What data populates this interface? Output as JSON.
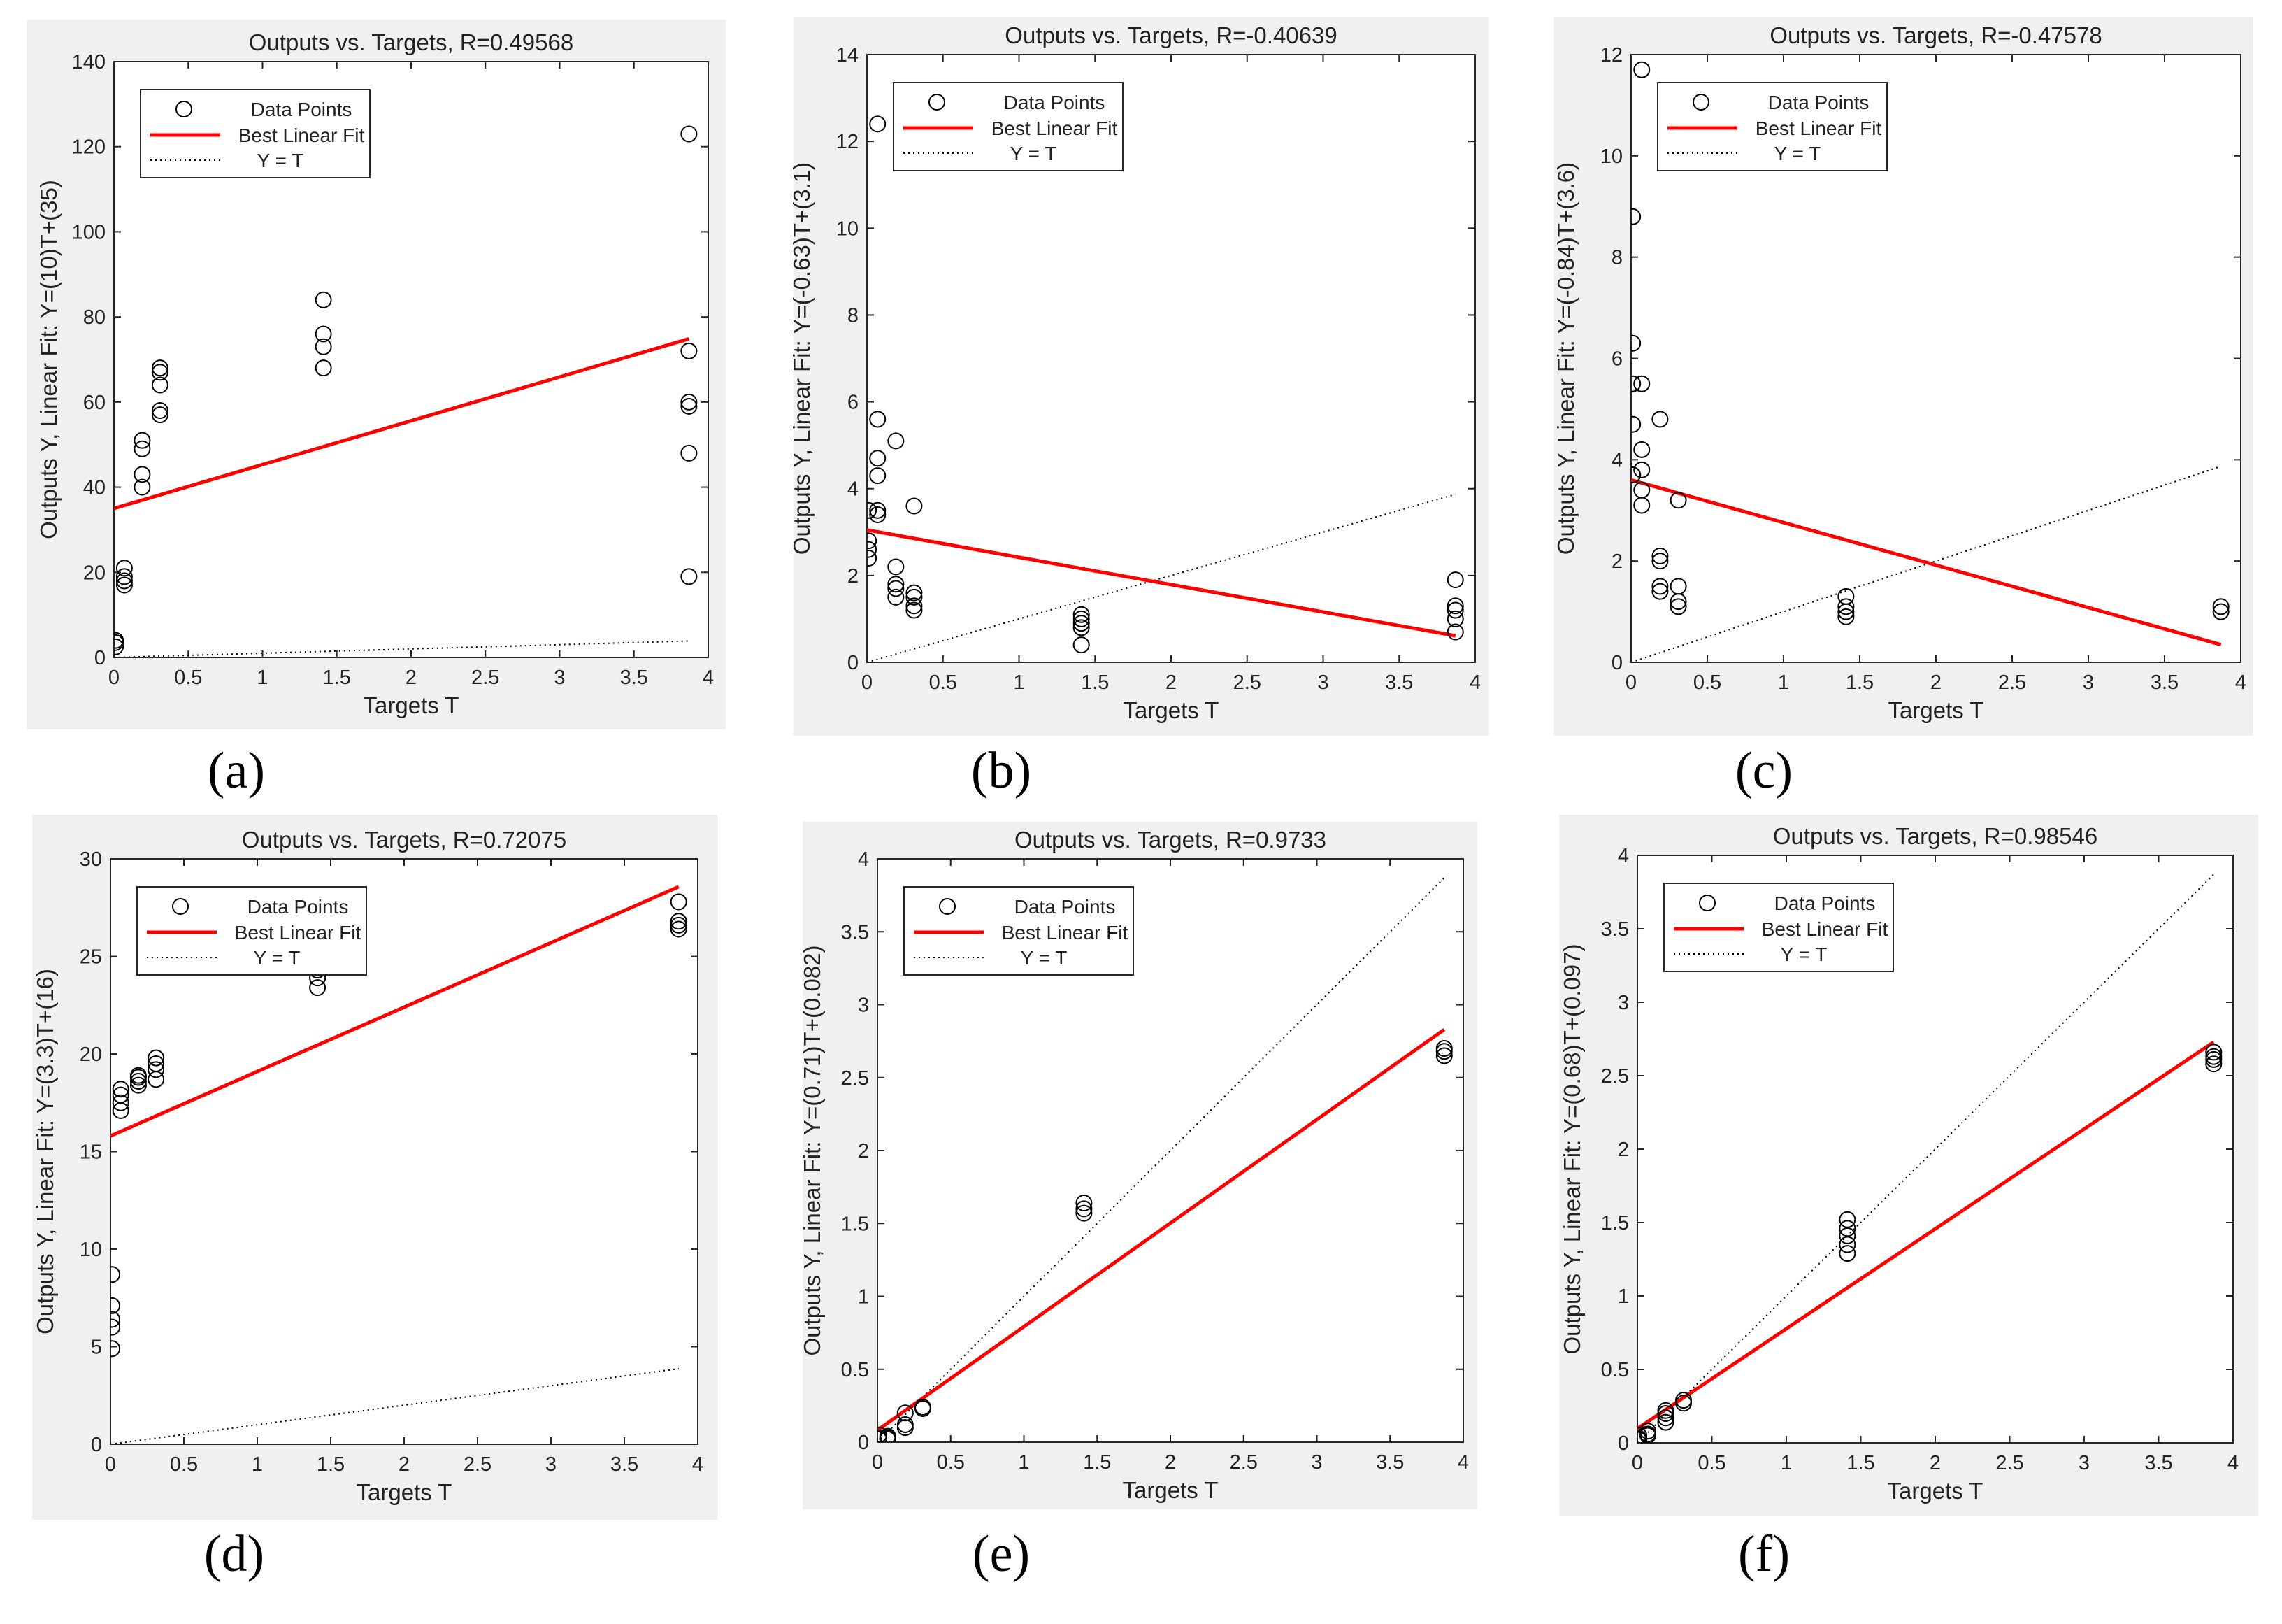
{
  "figure": {
    "captions": [
      "(a)",
      "(b)",
      "(c)",
      "(d)",
      "(e)",
      "(f)"
    ]
  },
  "legend": {
    "data_points": "Data Points",
    "best_fit": "Best Linear Fit",
    "identity": "Y = T"
  },
  "colors": {
    "fit": "#ff0000",
    "points": "#000000",
    "panel_bg": "#f0f0f0",
    "axes_bg": "#ffffff"
  },
  "chart_data": [
    {
      "id": "a",
      "type": "scatter",
      "title": "Outputs vs. Targets, R=0.49568",
      "xlabel": "Targets T",
      "ylabel": "Outputs Y,  Linear Fit: Y=(10)T+(35)",
      "xlim": [
        0,
        4
      ],
      "ylim": [
        0,
        140
      ],
      "xticks": [
        "0",
        "0.5",
        "1",
        "1.5",
        "2",
        "2.5",
        "3",
        "3.5",
        "4"
      ],
      "yticks": [
        "0",
        "20",
        "40",
        "60",
        "80",
        "100",
        "120",
        "140"
      ],
      "xtick_values": [
        0,
        0.5,
        1,
        1.5,
        2,
        2.5,
        3,
        3.5,
        4
      ],
      "ytick_values": [
        0,
        20,
        40,
        60,
        80,
        100,
        120,
        140
      ],
      "fit": {
        "slope": 10.3,
        "intercept": 35,
        "x_range": [
          0,
          3.87
        ]
      },
      "identity_range": [
        0,
        3.87
      ],
      "points": [
        [
          0.01,
          2.5
        ],
        [
          0.01,
          3.5
        ],
        [
          0.01,
          4
        ],
        [
          0.07,
          17
        ],
        [
          0.07,
          18
        ],
        [
          0.07,
          19
        ],
        [
          0.07,
          21
        ],
        [
          0.19,
          40
        ],
        [
          0.19,
          43
        ],
        [
          0.19,
          49
        ],
        [
          0.19,
          51
        ],
        [
          0.31,
          57
        ],
        [
          0.31,
          58
        ],
        [
          0.31,
          64
        ],
        [
          0.31,
          67
        ],
        [
          0.31,
          68
        ],
        [
          1.41,
          68
        ],
        [
          1.41,
          73
        ],
        [
          1.41,
          76
        ],
        [
          1.41,
          84
        ],
        [
          3.87,
          19
        ],
        [
          3.87,
          48
        ],
        [
          3.87,
          59
        ],
        [
          3.87,
          60
        ],
        [
          3.87,
          72
        ],
        [
          3.87,
          123
        ]
      ]
    },
    {
      "id": "b",
      "type": "scatter",
      "title": "Outputs vs. Targets, R=-0.40639",
      "xlabel": "Targets T",
      "ylabel": "Outputs Y,  Linear Fit: Y=(-0.63)T+(3.1)",
      "xlim": [
        0,
        4
      ],
      "ylim": [
        0,
        14
      ],
      "xticks": [
        "0",
        "0.5",
        "1",
        "1.5",
        "2",
        "2.5",
        "3",
        "3.5",
        "4"
      ],
      "yticks": [
        "0",
        "2",
        "4",
        "6",
        "8",
        "10",
        "12",
        "14"
      ],
      "xtick_values": [
        0,
        0.5,
        1,
        1.5,
        2,
        2.5,
        3,
        3.5,
        4
      ],
      "ytick_values": [
        0,
        2,
        4,
        6,
        8,
        10,
        12,
        14
      ],
      "fit": {
        "slope": -0.63,
        "intercept": 3.05,
        "x_range": [
          0,
          3.87
        ]
      },
      "identity_range": [
        0,
        3.87
      ],
      "points": [
        [
          0.01,
          2.4
        ],
        [
          0.01,
          2.6
        ],
        [
          0.01,
          2.8
        ],
        [
          0.01,
          3.5
        ],
        [
          0.07,
          3.4
        ],
        [
          0.07,
          3.5
        ],
        [
          0.07,
          4.3
        ],
        [
          0.07,
          4.7
        ],
        [
          0.07,
          5.6
        ],
        [
          0.07,
          12.4
        ],
        [
          0.19,
          1.5
        ],
        [
          0.19,
          1.7
        ],
        [
          0.19,
          1.8
        ],
        [
          0.19,
          2.2
        ],
        [
          0.19,
          5.1
        ],
        [
          0.31,
          1.2
        ],
        [
          0.31,
          1.3
        ],
        [
          0.31,
          1.5
        ],
        [
          0.31,
          1.6
        ],
        [
          0.31,
          3.6
        ],
        [
          1.41,
          0.4
        ],
        [
          1.41,
          0.8
        ],
        [
          1.41,
          0.9
        ],
        [
          1.41,
          1.0
        ],
        [
          1.41,
          1.1
        ],
        [
          3.87,
          0.7
        ],
        [
          3.87,
          1.0
        ],
        [
          3.87,
          1.2
        ],
        [
          3.87,
          1.3
        ],
        [
          3.87,
          1.9
        ]
      ]
    },
    {
      "id": "c",
      "type": "scatter",
      "title": "Outputs vs. Targets, R=-0.47578",
      "xlabel": "Targets T",
      "ylabel": "Outputs Y,  Linear Fit: Y=(-0.84)T+(3.6)",
      "xlim": [
        0,
        4
      ],
      "ylim": [
        0,
        12
      ],
      "xticks": [
        "0",
        "0.5",
        "1",
        "1.5",
        "2",
        "2.5",
        "3",
        "3.5",
        "4"
      ],
      "yticks": [
        "0",
        "2",
        "4",
        "6",
        "8",
        "10",
        "12"
      ],
      "xtick_values": [
        0,
        0.5,
        1,
        1.5,
        2,
        2.5,
        3,
        3.5,
        4
      ],
      "ytick_values": [
        0,
        2,
        4,
        6,
        8,
        10,
        12
      ],
      "fit": {
        "slope": -0.84,
        "intercept": 3.6,
        "x_range": [
          0,
          3.87
        ]
      },
      "identity_range": [
        0,
        3.87
      ],
      "points": [
        [
          0.01,
          3.7
        ],
        [
          0.01,
          3.7
        ],
        [
          0.01,
          4.7
        ],
        [
          0.01,
          5.5
        ],
        [
          0.01,
          6.3
        ],
        [
          0.01,
          8.8
        ],
        [
          0.07,
          3.1
        ],
        [
          0.07,
          3.4
        ],
        [
          0.07,
          3.8
        ],
        [
          0.07,
          4.2
        ],
        [
          0.07,
          5.5
        ],
        [
          0.07,
          11.7
        ],
        [
          0.19,
          1.4
        ],
        [
          0.19,
          1.5
        ],
        [
          0.19,
          2.0
        ],
        [
          0.19,
          2.1
        ],
        [
          0.19,
          4.8
        ],
        [
          0.31,
          1.1
        ],
        [
          0.31,
          1.2
        ],
        [
          0.31,
          1.5
        ],
        [
          0.31,
          3.2
        ],
        [
          1.41,
          0.9
        ],
        [
          1.41,
          1.0
        ],
        [
          1.41,
          1.1
        ],
        [
          1.41,
          1.3
        ],
        [
          3.87,
          1.0
        ],
        [
          3.87,
          1.1
        ]
      ]
    },
    {
      "id": "d",
      "type": "scatter",
      "title": "Outputs vs. Targets, R=0.72075",
      "xlabel": "Targets T",
      "ylabel": "Outputs Y,  Linear Fit: Y=(3.3)T+(16)",
      "xlim": [
        0,
        4
      ],
      "ylim": [
        0,
        30
      ],
      "xticks": [
        "0",
        "0.5",
        "1",
        "1.5",
        "2",
        "2.5",
        "3",
        "3.5",
        "4"
      ],
      "yticks": [
        "0",
        "5",
        "10",
        "15",
        "20",
        "25",
        "30"
      ],
      "xtick_values": [
        0,
        0.5,
        1,
        1.5,
        2,
        2.5,
        3,
        3.5,
        4
      ],
      "ytick_values": [
        0,
        5,
        10,
        15,
        20,
        25,
        30
      ],
      "fit": {
        "slope": 3.3,
        "intercept": 15.8,
        "x_range": [
          0,
          3.87
        ]
      },
      "identity_range": [
        0,
        3.87
      ],
      "points": [
        [
          0.01,
          4.9
        ],
        [
          0.01,
          6.0
        ],
        [
          0.01,
          6.4
        ],
        [
          0.01,
          7.1
        ],
        [
          0.01,
          8.7
        ],
        [
          0.07,
          17.1
        ],
        [
          0.07,
          17.5
        ],
        [
          0.07,
          17.9
        ],
        [
          0.07,
          18.2
        ],
        [
          0.19,
          18.4
        ],
        [
          0.19,
          18.6
        ],
        [
          0.19,
          18.8
        ],
        [
          0.19,
          18.9
        ],
        [
          0.31,
          18.7
        ],
        [
          0.31,
          19.2
        ],
        [
          0.31,
          19.5
        ],
        [
          0.31,
          19.8
        ],
        [
          1.41,
          23.4
        ],
        [
          1.41,
          23.9
        ],
        [
          1.41,
          24.3
        ],
        [
          3.87,
          26.4
        ],
        [
          3.87,
          26.6
        ],
        [
          3.87,
          26.8
        ],
        [
          3.87,
          27.8
        ]
      ]
    },
    {
      "id": "e",
      "type": "scatter",
      "title": "Outputs vs. Targets, R=0.9733",
      "xlabel": "Targets T",
      "ylabel": "Outputs Y,  Linear Fit: Y=(0.71)T+(0.082)",
      "xlim": [
        0,
        4
      ],
      "ylim": [
        0,
        4
      ],
      "xticks": [
        "0",
        "0.5",
        "1",
        "1.5",
        "2",
        "2.5",
        "3",
        "3.5",
        "4"
      ],
      "yticks": [
        "0",
        "0.5",
        "1",
        "1.5",
        "2",
        "2.5",
        "3",
        "3.5",
        "4"
      ],
      "xtick_values": [
        0,
        0.5,
        1,
        1.5,
        2,
        2.5,
        3,
        3.5,
        4
      ],
      "ytick_values": [
        0,
        0.5,
        1,
        1.5,
        2,
        2.5,
        3,
        3.5,
        4
      ],
      "fit": {
        "slope": 0.71,
        "intercept": 0.082,
        "x_range": [
          0,
          3.87
        ]
      },
      "identity_range": [
        0,
        3.87
      ],
      "points": [
        [
          0.01,
          0.02
        ],
        [
          0.01,
          0.03
        ],
        [
          0.01,
          0.05
        ],
        [
          0.07,
          0.02
        ],
        [
          0.07,
          0.03
        ],
        [
          0.07,
          0.04
        ],
        [
          0.19,
          0.1
        ],
        [
          0.19,
          0.12
        ],
        [
          0.19,
          0.2
        ],
        [
          0.31,
          0.23
        ],
        [
          0.31,
          0.24
        ],
        [
          1.41,
          1.57
        ],
        [
          1.41,
          1.6
        ],
        [
          1.41,
          1.64
        ],
        [
          3.87,
          2.65
        ],
        [
          3.87,
          2.68
        ],
        [
          3.87,
          2.7
        ]
      ]
    },
    {
      "id": "f",
      "type": "scatter",
      "title": "Outputs vs. Targets, R=0.98546",
      "xlabel": "Targets T",
      "ylabel": "Outputs Y,  Linear Fit: Y=(0.68)T+(0.097)",
      "xlim": [
        0,
        4
      ],
      "ylim": [
        0,
        4
      ],
      "xticks": [
        "0",
        "0.5",
        "1",
        "1.5",
        "2",
        "2.5",
        "3",
        "3.5",
        "4"
      ],
      "yticks": [
        "0",
        "0.5",
        "1",
        "1.5",
        "2",
        "2.5",
        "3",
        "3.5",
        "4"
      ],
      "xtick_values": [
        0,
        0.5,
        1,
        1.5,
        2,
        2.5,
        3,
        3.5,
        4
      ],
      "ytick_values": [
        0,
        0.5,
        1,
        1.5,
        2,
        2.5,
        3,
        3.5,
        4
      ],
      "fit": {
        "slope": 0.68,
        "intercept": 0.097,
        "x_range": [
          0,
          3.87
        ]
      },
      "identity_range": [
        0,
        3.87
      ],
      "points": [
        [
          0.01,
          0.02
        ],
        [
          0.01,
          0.03
        ],
        [
          0.01,
          0.05
        ],
        [
          0.07,
          0.05
        ],
        [
          0.07,
          0.06
        ],
        [
          0.07,
          0.08
        ],
        [
          0.19,
          0.14
        ],
        [
          0.19,
          0.17
        ],
        [
          0.19,
          0.2
        ],
        [
          0.19,
          0.22
        ],
        [
          0.31,
          0.27
        ],
        [
          0.31,
          0.29
        ],
        [
          1.41,
          1.29
        ],
        [
          1.41,
          1.35
        ],
        [
          1.41,
          1.41
        ],
        [
          1.41,
          1.46
        ],
        [
          1.41,
          1.52
        ],
        [
          3.87,
          2.58
        ],
        [
          3.87,
          2.61
        ],
        [
          3.87,
          2.63
        ],
        [
          3.87,
          2.66
        ]
      ]
    }
  ]
}
